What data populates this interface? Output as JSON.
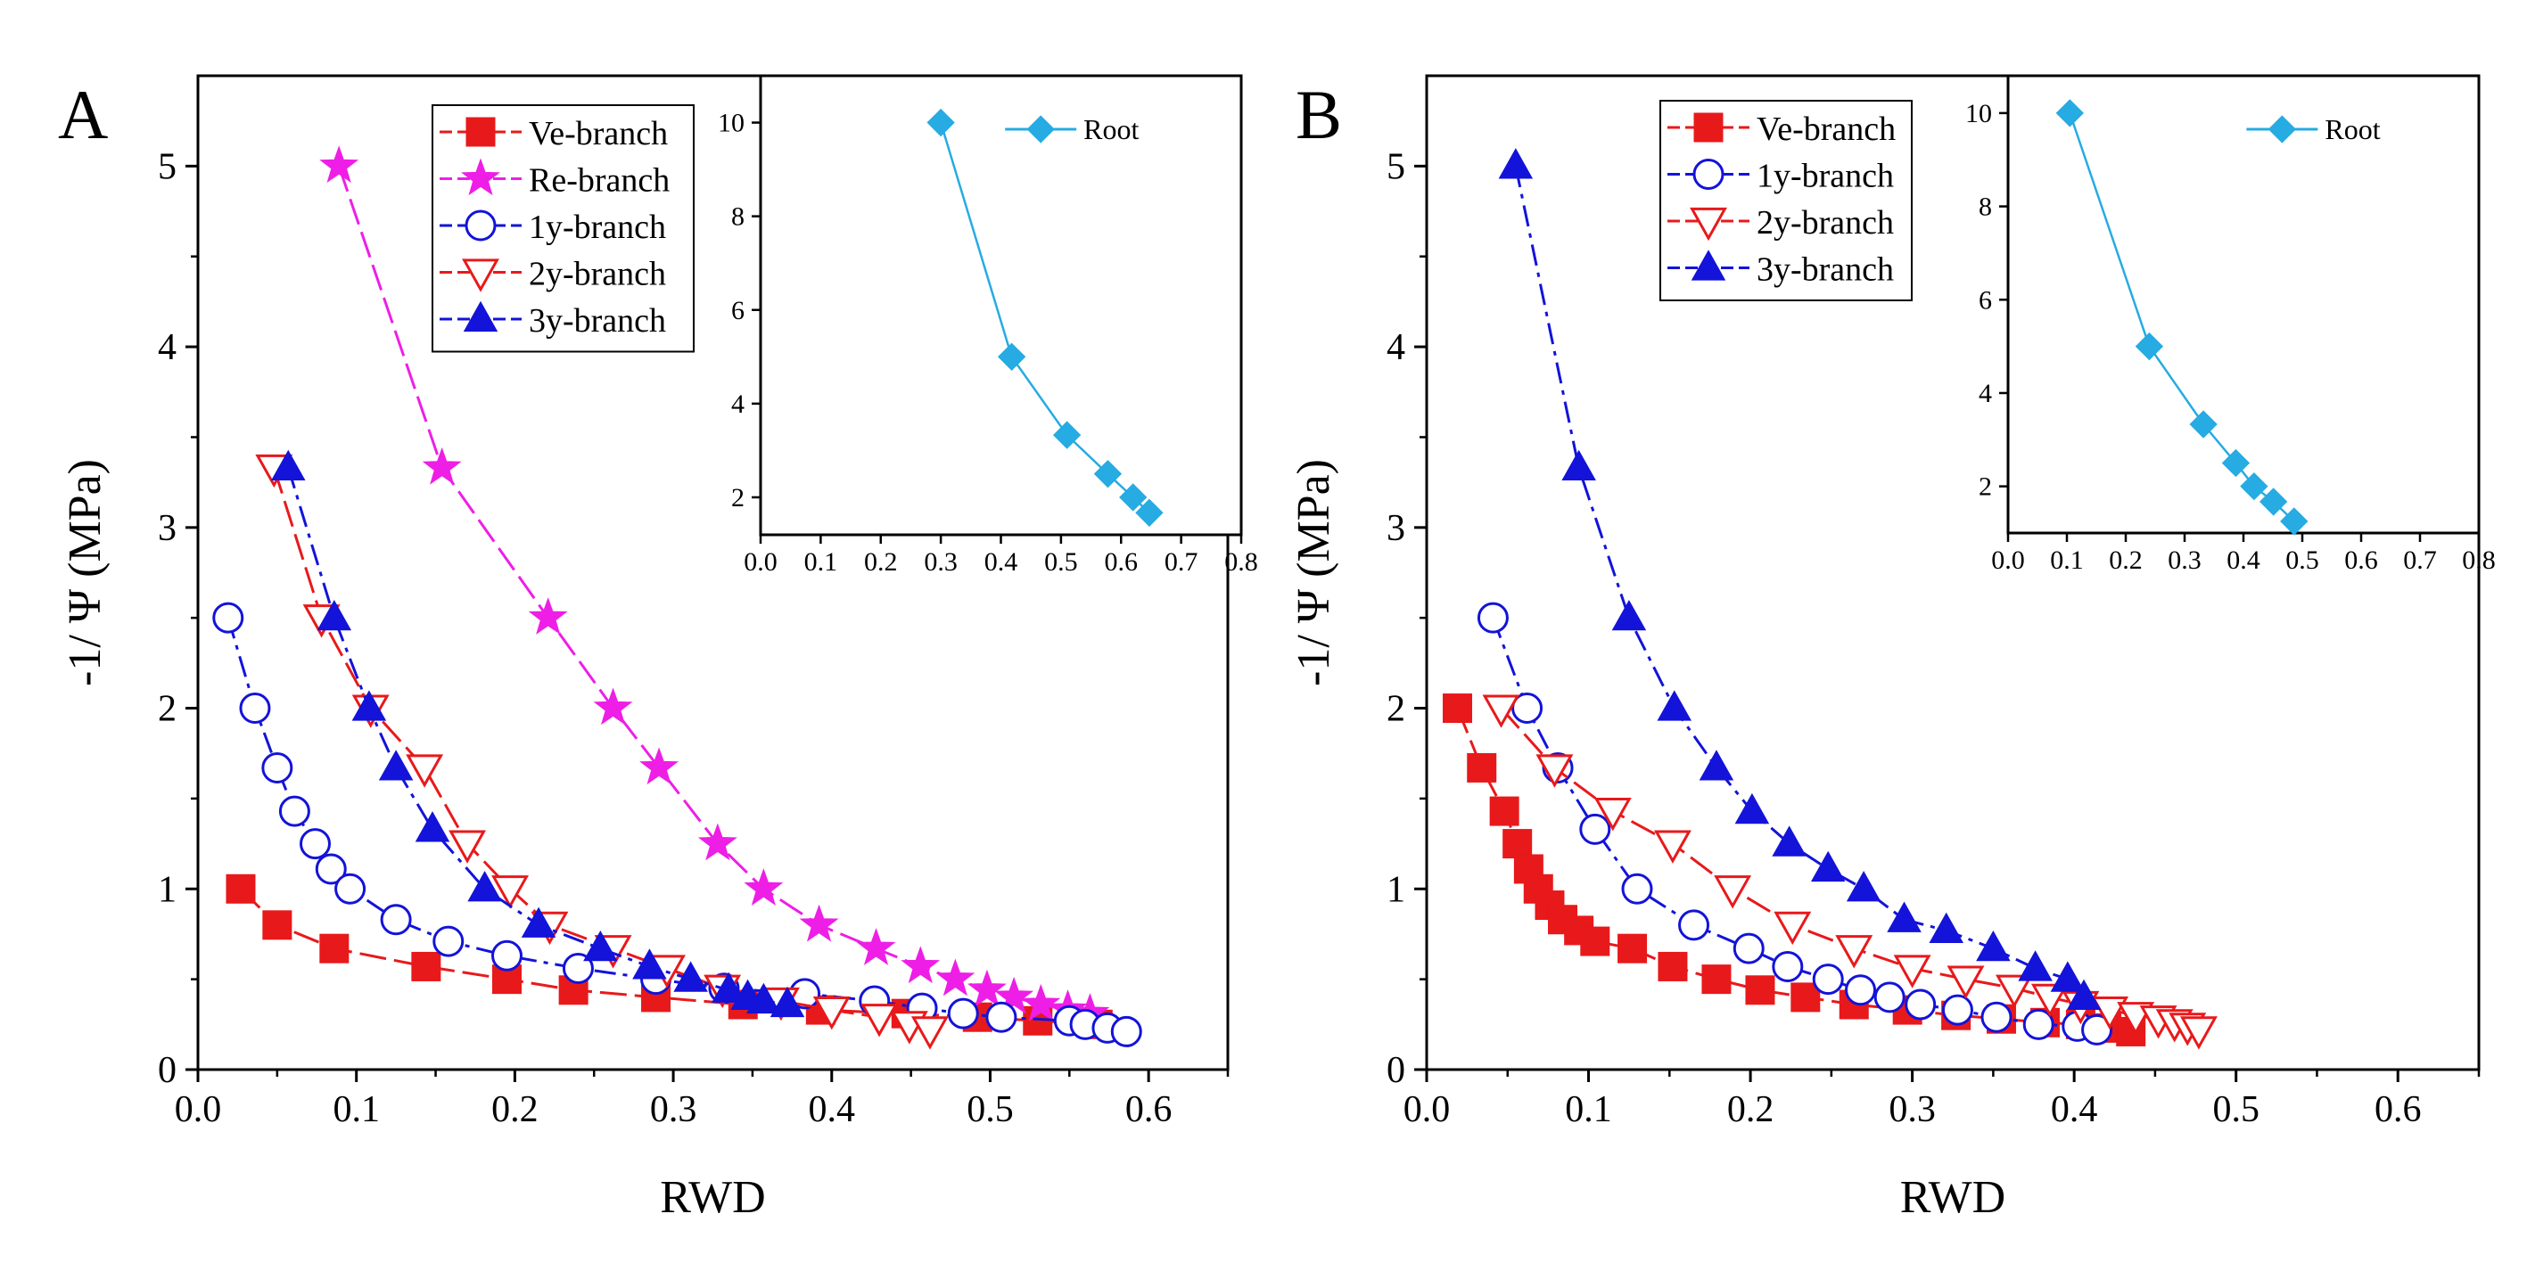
{
  "chart_data": [
    {
      "panel_label": "A",
      "type": "line",
      "xlabel": "RWD",
      "ylabel": "-1/ Ψ (MPa)",
      "xlim": [
        0,
        0.65
      ],
      "ylim": [
        0,
        5.5
      ],
      "xticks": [
        "0.0",
        "0.1",
        "0.2",
        "0.3",
        "0.4",
        "0.5",
        "0.6"
      ],
      "yticks": [
        "0",
        "1",
        "2",
        "3",
        "4",
        "5"
      ],
      "legend_position": "top-left",
      "series": [
        {
          "name": "Ve-branch",
          "color": "#e8191b",
          "marker": "square",
          "filled": true,
          "dash": "long-dash",
          "x": [
            0.027,
            0.05,
            0.086,
            0.144,
            0.195,
            0.237,
            0.289,
            0.344,
            0.393,
            0.447,
            0.492,
            0.53,
            0.568
          ],
          "y": [
            1.0,
            0.8,
            0.67,
            0.57,
            0.5,
            0.44,
            0.4,
            0.36,
            0.33,
            0.31,
            0.29,
            0.27,
            0.25
          ]
        },
        {
          "name": "Re-branch",
          "color": "#ee1ee6",
          "marker": "star",
          "filled": true,
          "dash": "long-dash",
          "x": [
            0.089,
            0.154,
            0.221,
            0.262,
            0.291,
            0.328,
            0.357,
            0.392,
            0.428,
            0.456,
            0.478,
            0.498,
            0.515,
            0.532,
            0.549,
            0.563
          ],
          "y": [
            5.0,
            3.33,
            2.5,
            2.0,
            1.67,
            1.25,
            1.0,
            0.8,
            0.67,
            0.57,
            0.5,
            0.44,
            0.4,
            0.36,
            0.33,
            0.31
          ]
        },
        {
          "name": "1y-branch",
          "color": "#1313d9",
          "marker": "circle",
          "filled": false,
          "dash": "dash-dot",
          "x": [
            0.019,
            0.036,
            0.05,
            0.061,
            0.074,
            0.084,
            0.096,
            0.125,
            0.158,
            0.195,
            0.24,
            0.289,
            0.332,
            0.383,
            0.427,
            0.457,
            0.483,
            0.507,
            0.55,
            0.56,
            0.574,
            0.586
          ],
          "y": [
            2.5,
            2.0,
            1.67,
            1.43,
            1.25,
            1.11,
            1.0,
            0.83,
            0.71,
            0.63,
            0.56,
            0.5,
            0.45,
            0.42,
            0.38,
            0.34,
            0.31,
            0.29,
            0.27,
            0.25,
            0.23,
            0.21
          ]
        },
        {
          "name": "2y-branch",
          "color": "#e8191b",
          "marker": "triangle-down",
          "filled": false,
          "dash": "long-dash",
          "x": [
            0.048,
            0.078,
            0.109,
            0.143,
            0.17,
            0.197,
            0.222,
            0.262,
            0.296,
            0.331,
            0.368,
            0.4,
            0.43,
            0.449,
            0.462
          ],
          "y": [
            3.33,
            2.5,
            2.0,
            1.67,
            1.25,
            1.0,
            0.8,
            0.67,
            0.56,
            0.45,
            0.38,
            0.33,
            0.29,
            0.25,
            0.22
          ]
        },
        {
          "name": "3y-branch",
          "color": "#1313d9",
          "marker": "triangle-up",
          "filled": true,
          "dash": "dash-dot",
          "x": [
            0.057,
            0.086,
            0.108,
            0.125,
            0.148,
            0.181,
            0.215,
            0.254,
            0.285,
            0.311,
            0.335,
            0.347,
            0.357,
            0.372
          ],
          "y": [
            3.33,
            2.5,
            2.0,
            1.67,
            1.33,
            1.0,
            0.8,
            0.67,
            0.57,
            0.5,
            0.44,
            0.4,
            0.38,
            0.36
          ]
        }
      ],
      "inset": {
        "xlim": [
          0.0,
          0.8
        ],
        "ylim": [
          1.2,
          11.0
        ],
        "xticks": [
          "0.0",
          "0.1",
          "0.2",
          "0.3",
          "0.4",
          "0.5",
          "0.6",
          "0.7",
          "0.8"
        ],
        "yticks": [
          "2",
          "4",
          "6",
          "8",
          "10"
        ],
        "series": [
          {
            "name": "Root",
            "color": "#26abe2",
            "marker": "diamond",
            "filled": true,
            "dash": "solid",
            "x": [
              0.3,
              0.418,
              0.51,
              0.578,
              0.62,
              0.647
            ],
            "y": [
              10.0,
              5.0,
              3.33,
              2.5,
              2.0,
              1.67
            ]
          }
        ]
      }
    },
    {
      "panel_label": "B",
      "type": "line",
      "xlabel": "RWD",
      "ylabel": "-1/ Ψ (MPa)",
      "xlim": [
        0,
        0.65
      ],
      "ylim": [
        0,
        5.5
      ],
      "xticks": [
        "0.0",
        "0.1",
        "0.2",
        "0.3",
        "0.4",
        "0.5",
        "0.6"
      ],
      "yticks": [
        "0",
        "1",
        "2",
        "3",
        "4",
        "5"
      ],
      "legend_position": "top-left",
      "series": [
        {
          "name": "Ve-branch",
          "color": "#e8191b",
          "marker": "square",
          "filled": true,
          "dash": "long-dash",
          "x": [
            0.019,
            0.034,
            0.048,
            0.056,
            0.063,
            0.069,
            0.076,
            0.084,
            0.094,
            0.104,
            0.127,
            0.152,
            0.179,
            0.206,
            0.234,
            0.264,
            0.297,
            0.327,
            0.355,
            0.382,
            0.404,
            0.42,
            0.435
          ],
          "y": [
            2.0,
            1.67,
            1.43,
            1.25,
            1.11,
            1.0,
            0.91,
            0.83,
            0.77,
            0.71,
            0.67,
            0.57,
            0.5,
            0.44,
            0.4,
            0.36,
            0.33,
            0.3,
            0.28,
            0.26,
            0.25,
            0.23,
            0.21
          ]
        },
        {
          "name": "1y-branch",
          "color": "#1313d9",
          "marker": "circle",
          "filled": false,
          "dash": "dash-dot",
          "x": [
            0.041,
            0.062,
            0.081,
            0.104,
            0.13,
            0.165,
            0.199,
            0.223,
            0.248,
            0.268,
            0.286,
            0.305,
            0.328,
            0.352,
            0.378,
            0.402,
            0.414
          ],
          "y": [
            2.5,
            2.0,
            1.67,
            1.33,
            1.0,
            0.8,
            0.67,
            0.57,
            0.5,
            0.44,
            0.4,
            0.36,
            0.33,
            0.29,
            0.25,
            0.24,
            0.22
          ]
        },
        {
          "name": "2y-branch",
          "color": "#e8191b",
          "marker": "triangle-down",
          "filled": false,
          "dash": "long-dash",
          "x": [
            0.046,
            0.079,
            0.115,
            0.152,
            0.189,
            0.226,
            0.264,
            0.3,
            0.333,
            0.363,
            0.385,
            0.404,
            0.422,
            0.438,
            0.452,
            0.462,
            0.47,
            0.477
          ],
          "y": [
            2.0,
            1.67,
            1.43,
            1.25,
            1.0,
            0.8,
            0.67,
            0.56,
            0.5,
            0.45,
            0.4,
            0.36,
            0.33,
            0.3,
            0.28,
            0.26,
            0.24,
            0.22
          ]
        },
        {
          "name": "3y-branch",
          "color": "#1313d9",
          "marker": "triangle-up",
          "filled": true,
          "dash": "dash-dot",
          "x": [
            0.055,
            0.094,
            0.125,
            0.153,
            0.179,
            0.201,
            0.224,
            0.248,
            0.27,
            0.295,
            0.321,
            0.35,
            0.376,
            0.396,
            0.406
          ],
          "y": [
            5.0,
            3.33,
            2.5,
            2.0,
            1.67,
            1.43,
            1.25,
            1.11,
            1.0,
            0.83,
            0.77,
            0.67,
            0.56,
            0.5,
            0.4
          ]
        }
      ],
      "inset": {
        "xlim": [
          0.0,
          0.8
        ],
        "ylim": [
          1.0,
          10.8
        ],
        "xticks": [
          "0.0",
          "0.1",
          "0.2",
          "0.3",
          "0.4",
          "0.5",
          "0.6",
          "0.7",
          "0.8"
        ],
        "yticks": [
          "2",
          "4",
          "6",
          "8",
          "10"
        ],
        "series": [
          {
            "name": "Root",
            "color": "#26abe2",
            "marker": "diamond",
            "filled": true,
            "dash": "solid",
            "x": [
              0.105,
              0.24,
              0.332,
              0.387,
              0.418,
              0.451,
              0.486
            ],
            "y": [
              10.0,
              5.0,
              3.33,
              2.5,
              2.0,
              1.67,
              1.25
            ]
          }
        ]
      }
    }
  ]
}
